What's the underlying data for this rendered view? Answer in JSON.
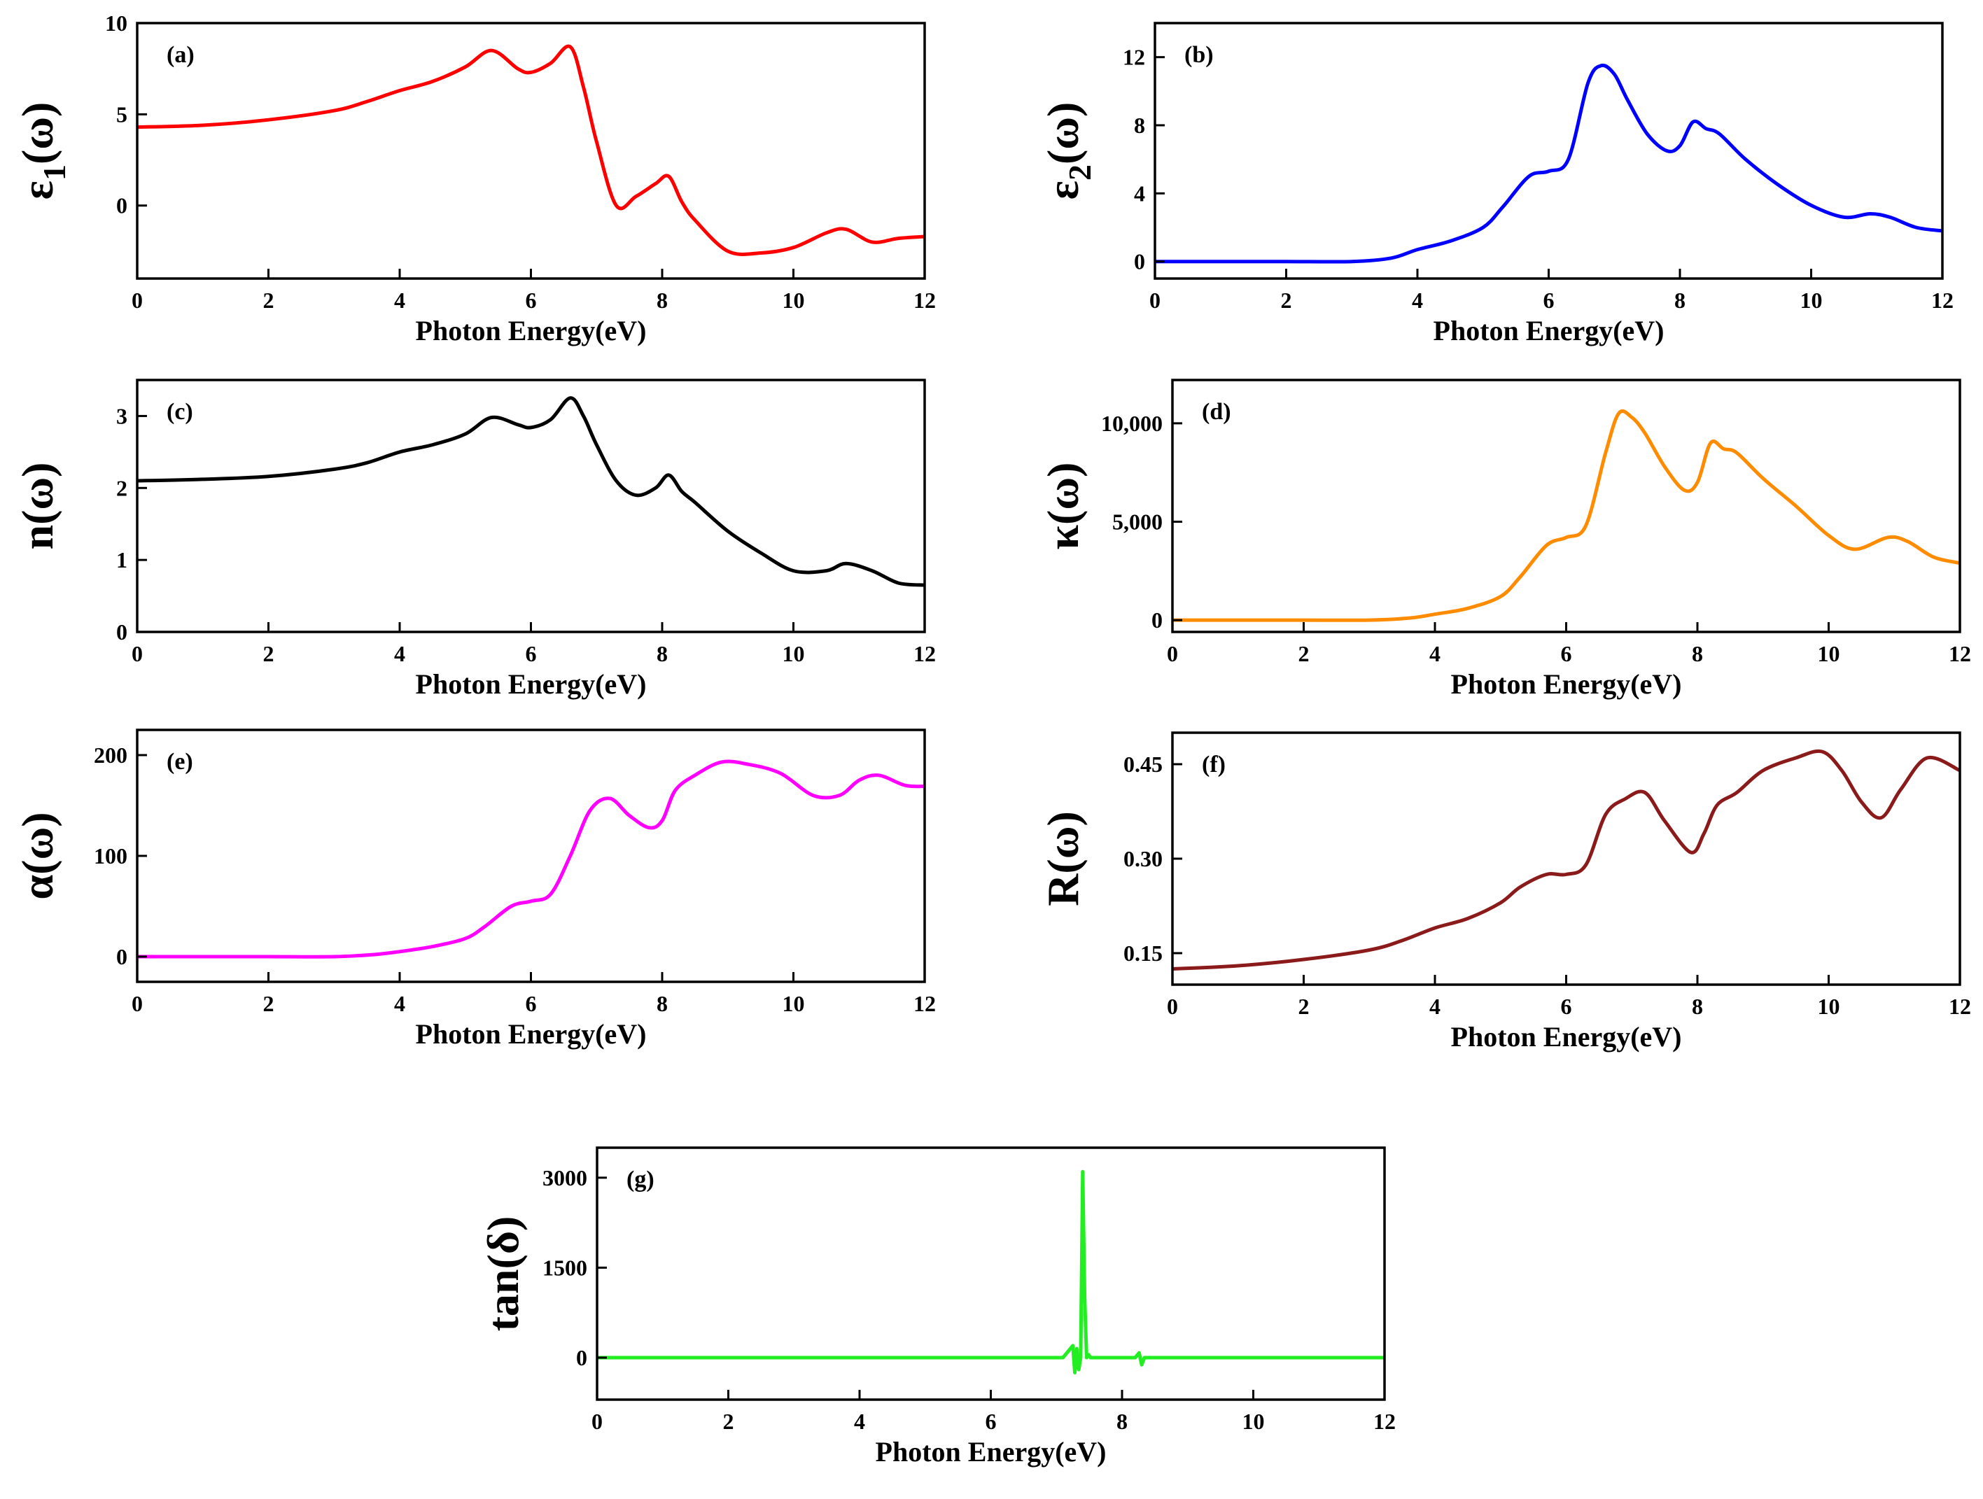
{
  "chart_data": [
    {
      "id": "a",
      "type": "line",
      "tag": "(a)",
      "color": "#ff0000",
      "ylabel": "ε",
      "ylabel_sub": "1",
      "ylabel_tail": "(ω)",
      "xlabel": "Photon Energy(eV)",
      "xlim": [
        0,
        12
      ],
      "ylim": [
        -4,
        10
      ],
      "xticks": [
        0,
        2,
        4,
        6,
        8,
        10,
        12
      ],
      "yticks": [
        0,
        5,
        10
      ],
      "ytick_labels": [
        "0",
        "5",
        "10"
      ],
      "x": [
        0,
        1,
        2,
        3,
        3.5,
        4,
        4.5,
        5,
        5.4,
        5.8,
        6.0,
        6.3,
        6.6,
        6.8,
        7.0,
        7.3,
        7.6,
        7.9,
        8.1,
        8.3,
        8.5,
        9.0,
        9.5,
        10.0,
        10.5,
        10.8,
        11.2,
        11.6,
        12
      ],
      "y": [
        4.3,
        4.4,
        4.7,
        5.2,
        5.7,
        6.3,
        6.8,
        7.6,
        8.5,
        7.5,
        7.3,
        7.8,
        8.7,
        6.5,
        3.5,
        0,
        0.5,
        1.2,
        1.6,
        0.2,
        -0.8,
        -2.5,
        -2.6,
        -2.3,
        -1.5,
        -1.3,
        -2.0,
        -1.8,
        -1.7
      ]
    },
    {
      "id": "b",
      "type": "line",
      "tag": "(b)",
      "color": "#0000ff",
      "ylabel": "ε",
      "ylabel_sub": "2",
      "ylabel_tail": "(ω)",
      "xlabel": "Photon Energy(eV)",
      "xlim": [
        0,
        12
      ],
      "ylim": [
        -1,
        14
      ],
      "xticks": [
        0,
        2,
        4,
        6,
        8,
        10,
        12
      ],
      "yticks": [
        0,
        4,
        8,
        12
      ],
      "ytick_labels": [
        "0",
        "4",
        "8",
        "12"
      ],
      "x": [
        0,
        1,
        2,
        3,
        3.6,
        4,
        4.5,
        5,
        5.3,
        5.7,
        6.0,
        6.3,
        6.6,
        6.8,
        7.0,
        7.2,
        7.5,
        7.8,
        8.0,
        8.2,
        8.4,
        8.6,
        9.0,
        9.5,
        10.0,
        10.5,
        10.9,
        11.2,
        11.6,
        12
      ],
      "y": [
        0,
        0,
        0,
        0,
        0.2,
        0.7,
        1.2,
        2.0,
        3.2,
        5.0,
        5.3,
        6.0,
        10.5,
        11.5,
        11.0,
        9.5,
        7.5,
        6.5,
        6.8,
        8.2,
        7.8,
        7.5,
        6.0,
        4.5,
        3.3,
        2.6,
        2.8,
        2.6,
        2.0,
        1.8
      ]
    },
    {
      "id": "c",
      "type": "line",
      "tag": "(c)",
      "color": "#000000",
      "ylabel": "n(ω)",
      "ylabel_sub": "",
      "ylabel_tail": "",
      "xlabel": "Photon Energy(eV)",
      "xlim": [
        0,
        12
      ],
      "ylim": [
        0,
        3.5
      ],
      "xticks": [
        0,
        2,
        4,
        6,
        8,
        10,
        12
      ],
      "yticks": [
        0,
        1,
        2,
        3
      ],
      "ytick_labels": [
        "0",
        "1",
        "2",
        "3"
      ],
      "x": [
        0,
        1,
        2,
        3,
        3.5,
        4,
        4.5,
        5,
        5.4,
        5.8,
        6.0,
        6.3,
        6.6,
        6.8,
        7.0,
        7.3,
        7.6,
        7.9,
        8.1,
        8.3,
        8.5,
        9.0,
        9.5,
        10.0,
        10.5,
        10.8,
        11.2,
        11.6,
        12
      ],
      "y": [
        2.1,
        2.12,
        2.16,
        2.26,
        2.35,
        2.5,
        2.6,
        2.75,
        2.98,
        2.88,
        2.84,
        2.95,
        3.25,
        3.0,
        2.6,
        2.1,
        1.9,
        2.0,
        2.18,
        1.95,
        1.8,
        1.4,
        1.1,
        0.85,
        0.85,
        0.95,
        0.85,
        0.68,
        0.65
      ]
    },
    {
      "id": "d",
      "type": "line",
      "tag": "(d)",
      "color": "#ff8c00",
      "ylabel": "κ(ω)",
      "ylabel_sub": "",
      "ylabel_tail": "",
      "xlabel": "Photon Energy(eV)",
      "xlim": [
        0,
        12
      ],
      "ylim": [
        -600,
        12200
      ],
      "xticks": [
        0,
        2,
        4,
        6,
        8,
        10,
        12
      ],
      "yticks": [
        0,
        5000,
        10000
      ],
      "ytick_labels": [
        "0",
        "5,000",
        "10,000"
      ],
      "x": [
        0,
        1,
        2,
        3,
        3.6,
        4,
        4.5,
        5,
        5.3,
        5.7,
        6.0,
        6.3,
        6.6,
        6.8,
        7.0,
        7.2,
        7.5,
        7.8,
        8.0,
        8.2,
        8.4,
        8.6,
        9.0,
        9.5,
        10.0,
        10.4,
        10.9,
        11.2,
        11.6,
        12
      ],
      "y": [
        0,
        0,
        0,
        0,
        100,
        300,
        600,
        1200,
        2200,
        3800,
        4200,
        4800,
        8500,
        10500,
        10300,
        9500,
        7800,
        6600,
        7000,
        9000,
        8700,
        8500,
        7200,
        5800,
        4300,
        3600,
        4200,
        4000,
        3200,
        2900
      ]
    },
    {
      "id": "e",
      "type": "line",
      "tag": "(e)",
      "color": "#ff00ff",
      "ylabel": "α(ω)",
      "ylabel_sub": "",
      "ylabel_tail": "",
      "xlabel": "Photon Energy(eV)",
      "xlim": [
        0,
        12
      ],
      "ylim": [
        -25,
        225
      ],
      "xticks": [
        0,
        2,
        4,
        6,
        8,
        10,
        12
      ],
      "yticks": [
        0,
        100,
        200
      ],
      "ytick_labels": [
        "0",
        "100",
        "200"
      ],
      "x": [
        0,
        1,
        2,
        3,
        3.6,
        4,
        4.5,
        5,
        5.3,
        5.7,
        6.0,
        6.3,
        6.6,
        6.9,
        7.2,
        7.5,
        7.8,
        8.0,
        8.2,
        8.5,
        8.9,
        9.3,
        9.8,
        10.3,
        10.7,
        11.0,
        11.3,
        11.7,
        12
      ],
      "y": [
        0,
        0,
        0,
        0,
        2,
        5,
        10,
        18,
        30,
        50,
        55,
        62,
        100,
        145,
        157,
        140,
        128,
        135,
        165,
        180,
        193,
        191,
        182,
        160,
        160,
        175,
        180,
        170,
        169
      ]
    },
    {
      "id": "f",
      "type": "line",
      "tag": "(f)",
      "color": "#8b1a1a",
      "ylabel": "R(ω)",
      "ylabel_sub": "",
      "ylabel_tail": "",
      "xlabel": "Photon Energy(eV)",
      "xlim": [
        0,
        12
      ],
      "ylim": [
        0.1,
        0.5
      ],
      "xticks": [
        0,
        2,
        4,
        6,
        8,
        10,
        12
      ],
      "yticks": [
        0.15,
        0.3,
        0.45
      ],
      "ytick_labels": [
        "0.15",
        "0.30",
        "0.45"
      ],
      "x": [
        0,
        1,
        2,
        3,
        3.5,
        4,
        4.5,
        5,
        5.3,
        5.7,
        6.0,
        6.3,
        6.6,
        6.9,
        7.2,
        7.5,
        7.9,
        8.1,
        8.3,
        8.6,
        9.0,
        9.5,
        9.9,
        10.2,
        10.5,
        10.8,
        11.1,
        11.5,
        12
      ],
      "y": [
        0.125,
        0.13,
        0.14,
        0.155,
        0.17,
        0.19,
        0.205,
        0.23,
        0.255,
        0.275,
        0.275,
        0.29,
        0.37,
        0.395,
        0.405,
        0.36,
        0.31,
        0.34,
        0.385,
        0.405,
        0.44,
        0.46,
        0.47,
        0.44,
        0.39,
        0.365,
        0.41,
        0.46,
        0.44
      ]
    },
    {
      "id": "g",
      "type": "line",
      "tag": "(g)",
      "color": "#22ee22",
      "ylabel": "tan(δ)",
      "ylabel_sub": "",
      "ylabel_tail": "",
      "xlabel": "Photon Energy(eV)",
      "xlim": [
        0,
        12
      ],
      "ylim": [
        -700,
        3500
      ],
      "xticks": [
        0,
        2,
        4,
        6,
        8,
        10,
        12
      ],
      "yticks": [
        0,
        1500,
        3000
      ],
      "ytick_labels": [
        "0",
        "1500",
        "3000"
      ],
      "x": [
        0,
        7.1,
        7.25,
        7.28,
        7.31,
        7.34,
        7.37,
        7.4,
        7.43,
        7.46,
        7.49,
        7.52,
        7.6,
        8.2,
        8.26,
        8.3,
        8.34,
        8.5,
        12
      ],
      "y": [
        0,
        0,
        200,
        -250,
        150,
        -200,
        0,
        3100,
        1000,
        0,
        50,
        0,
        0,
        0,
        80,
        -120,
        0,
        0,
        0
      ]
    }
  ]
}
